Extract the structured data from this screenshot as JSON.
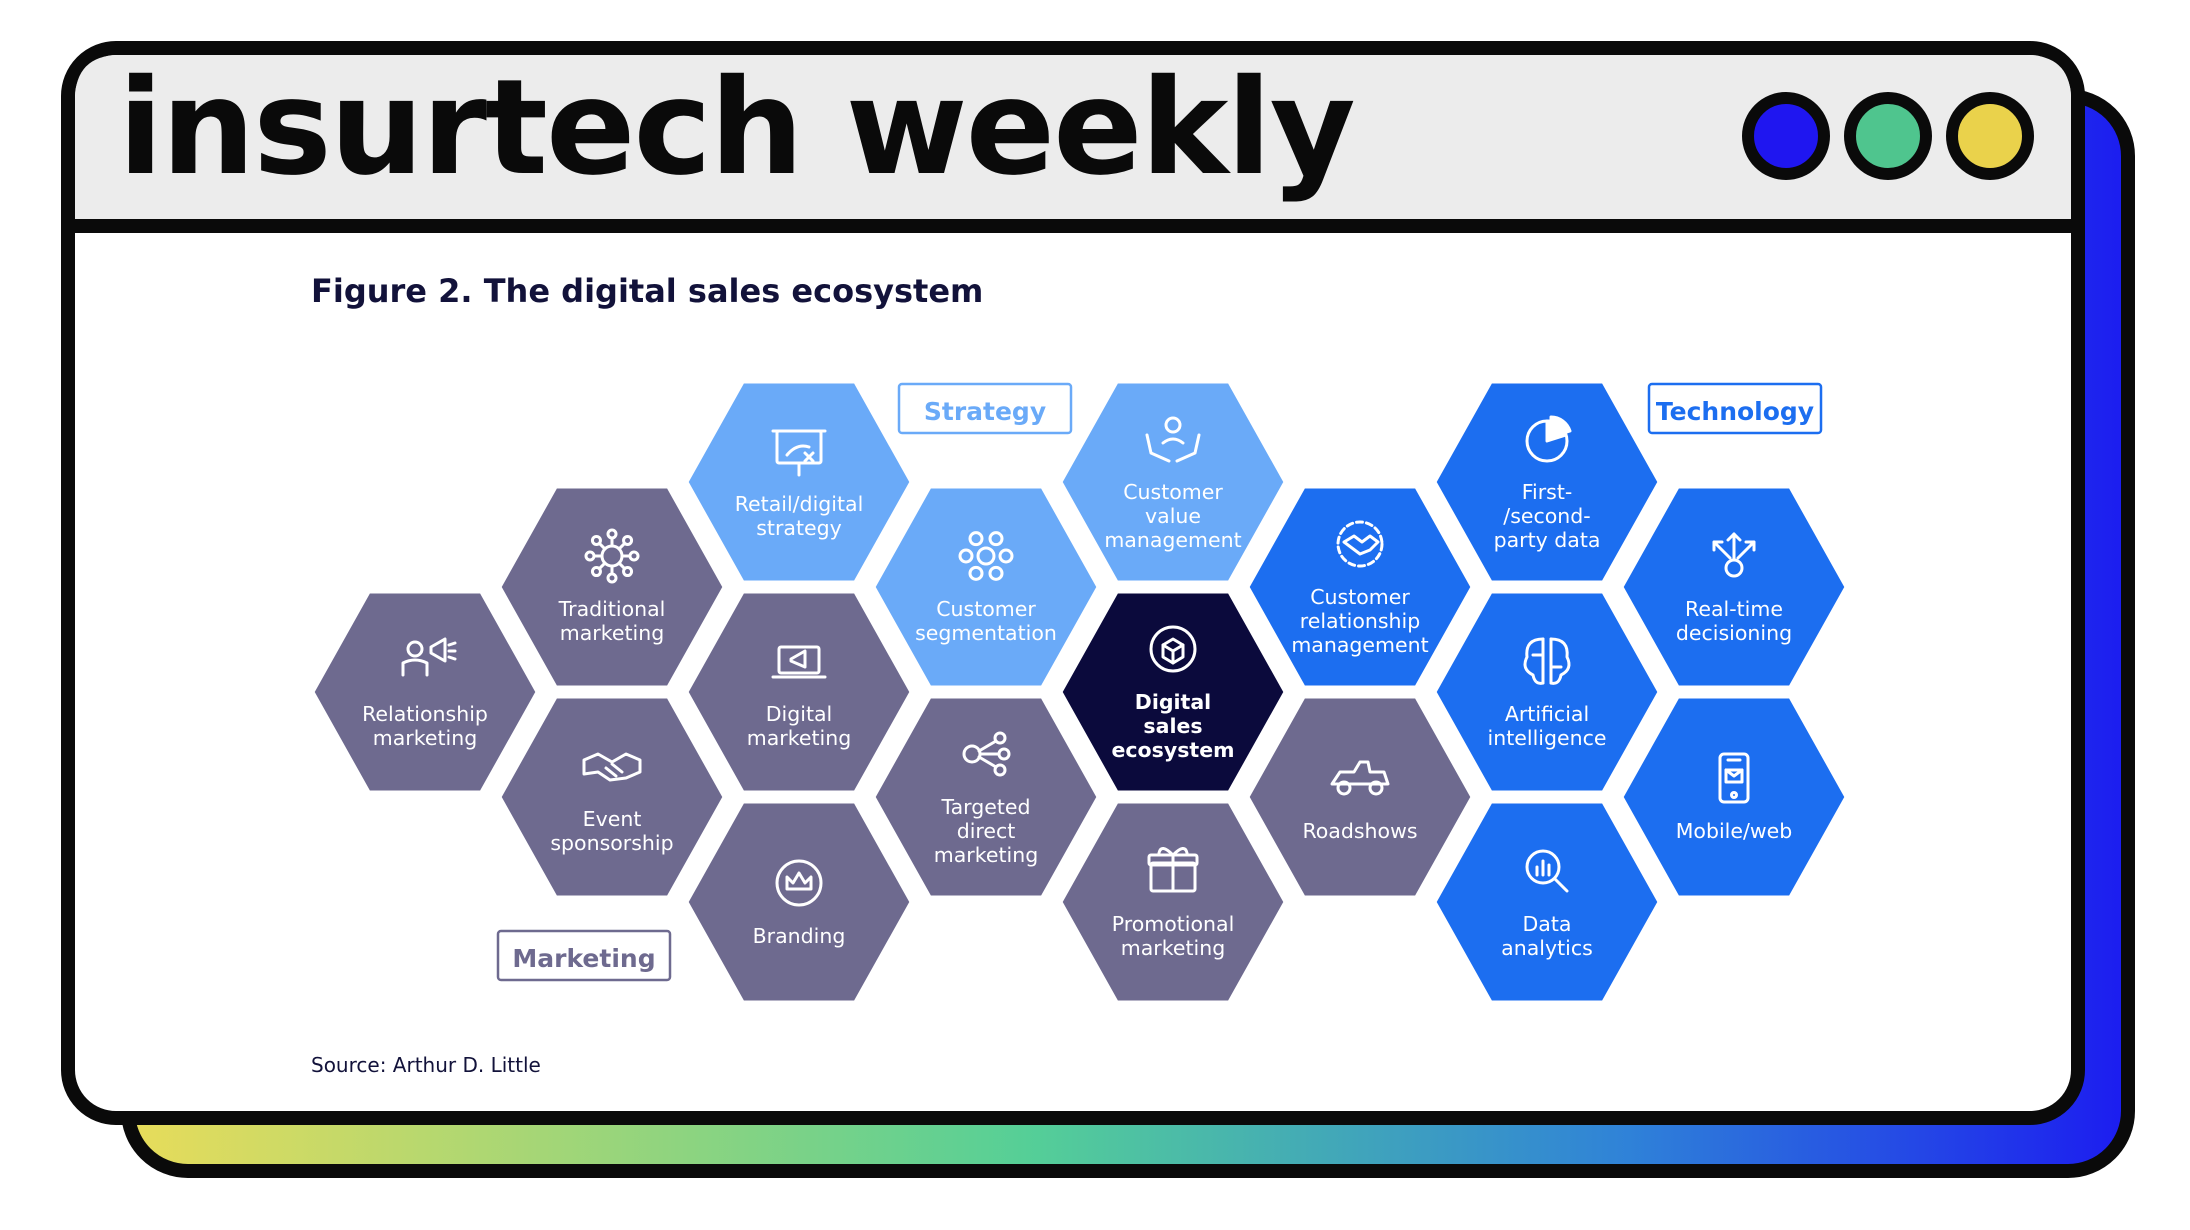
{
  "header": {
    "brand": "insurtech weekly",
    "window_dots": [
      {
        "name": "blue-dot",
        "color": "#1f16f0"
      },
      {
        "name": "green-dot",
        "color": "#4fc58e"
      },
      {
        "name": "yellow-dot",
        "color": "#ead24b"
      }
    ]
  },
  "figure": {
    "title": "Figure 2. The digital sales ecosystem",
    "source": "Source: Arthur D. Little"
  },
  "categories": {
    "strategy": {
      "label": "Strategy",
      "color": "#6aaaf8"
    },
    "technology": {
      "label": "Technology",
      "color": "#1c6ef0"
    },
    "marketing": {
      "label": "Marketing",
      "color": "#6e6a8f"
    },
    "center": {
      "color": "#0b0a3c"
    }
  },
  "hexagons": [
    {
      "id": "relationship-marketing",
      "lines": [
        "Relationship",
        "marketing"
      ],
      "category": "marketing",
      "icon": "megaphone-person-icon"
    },
    {
      "id": "traditional-marketing",
      "lines": [
        "Traditional",
        "marketing"
      ],
      "category": "marketing",
      "icon": "network-megaphone-icon"
    },
    {
      "id": "event-sponsorship",
      "lines": [
        "Event",
        "sponsorship"
      ],
      "category": "marketing",
      "icon": "handshake-icon"
    },
    {
      "id": "retail-digital-strategy",
      "lines": [
        "Retail/digital",
        "strategy"
      ],
      "category": "strategy",
      "icon": "strategy-board-icon"
    },
    {
      "id": "digital-marketing",
      "lines": [
        "Digital",
        "marketing"
      ],
      "category": "marketing",
      "icon": "laptop-megaphone-icon"
    },
    {
      "id": "branding",
      "lines": [
        "Branding"
      ],
      "category": "marketing",
      "icon": "crown-badge-icon"
    },
    {
      "id": "customer-segmentation",
      "lines": [
        "Customer",
        "segmentation"
      ],
      "category": "strategy",
      "icon": "segmentation-icon"
    },
    {
      "id": "targeted-direct-marketing",
      "lines": [
        "Targeted",
        "direct",
        "marketing"
      ],
      "category": "marketing",
      "icon": "target-network-icon"
    },
    {
      "id": "customer-value-management",
      "lines": [
        "Customer",
        "value",
        "management"
      ],
      "category": "strategy",
      "icon": "hands-person-icon"
    },
    {
      "id": "digital-sales-ecosystem",
      "lines": [
        "Digital",
        "sales",
        "ecosystem"
      ],
      "category": "center",
      "icon": "cube-network-icon"
    },
    {
      "id": "promotional-marketing",
      "lines": [
        "Promotional",
        "marketing"
      ],
      "category": "marketing",
      "icon": "gift-box-icon"
    },
    {
      "id": "customer-relationship-management",
      "lines": [
        "Customer",
        "relationship",
        "management"
      ],
      "category": "technology",
      "icon": "handshake-gear-icon"
    },
    {
      "id": "roadshows",
      "lines": [
        "Roadshows"
      ],
      "category": "marketing",
      "icon": "race-car-icon"
    },
    {
      "id": "first-second-party-data",
      "lines": [
        "First-",
        "/second-",
        "party data"
      ],
      "category": "technology",
      "icon": "pie-chart-icon"
    },
    {
      "id": "artificial-intelligence",
      "lines": [
        "Artificial",
        "intelligence"
      ],
      "category": "technology",
      "icon": "brain-circuit-icon"
    },
    {
      "id": "data-analytics",
      "lines": [
        "Data",
        "analytics"
      ],
      "category": "technology",
      "icon": "magnifier-chart-icon"
    },
    {
      "id": "real-time-decisioning",
      "lines": [
        "Real-time",
        "decisioning"
      ],
      "category": "technology",
      "icon": "arrows-gear-icon"
    },
    {
      "id": "mobile-web",
      "lines": [
        "Mobile/web"
      ],
      "category": "technology",
      "icon": "smartphone-icon"
    }
  ]
}
